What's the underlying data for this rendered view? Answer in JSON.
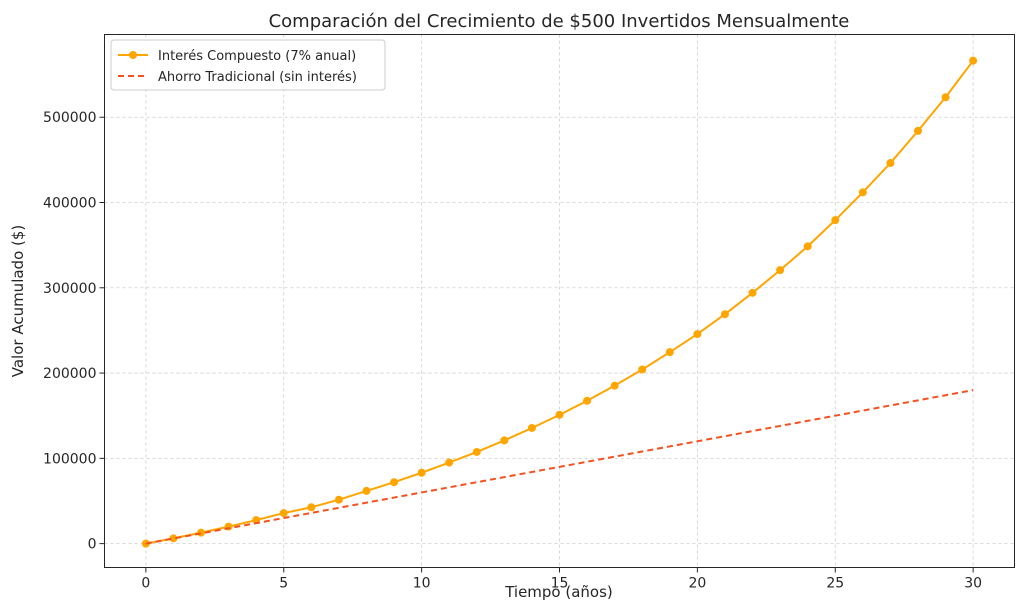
{
  "chart_data": {
    "type": "line",
    "title": "Comparación del Crecimiento de $500 Invertidos Mensualmente",
    "xlabel": "Tiempo (años)",
    "ylabel": "Valor Acumulado ($)",
    "xlim": [
      -1.5,
      31.5
    ],
    "ylim": [
      -28000,
      597000
    ],
    "xticks": [
      0,
      5,
      10,
      15,
      20,
      25,
      30
    ],
    "yticks": [
      0,
      100000,
      200000,
      300000,
      400000,
      500000
    ],
    "grid": true,
    "legend_position": "top-left",
    "x": [
      0,
      1,
      2,
      3,
      4,
      5,
      6,
      7,
      8,
      9,
      10,
      11,
      12,
      13,
      14,
      15,
      16,
      17,
      18,
      19,
      20,
      21,
      22,
      23,
      24,
      25,
      26,
      27,
      28,
      29,
      30
    ],
    "series": [
      {
        "name": "Interés Compuesto (7% anual)",
        "color": "#FFA500",
        "style": "solid",
        "marker": "circle",
        "values": [
          0,
          6200,
          12850,
          19960,
          27570,
          35800,
          42600,
          51500,
          61800,
          72000,
          83100,
          95000,
          107500,
          121000,
          135600,
          151000,
          167500,
          185200,
          204200,
          224500,
          245700,
          269000,
          294100,
          320700,
          348600,
          379300,
          411900,
          446300,
          484000,
          523400,
          566300
        ]
      },
      {
        "name": "Ahorro Tradicional (sin interés)",
        "color": "#F4511E",
        "style": "dashed",
        "marker": "none",
        "values": [
          0,
          6000,
          12000,
          18000,
          24000,
          30000,
          36000,
          42000,
          48000,
          54000,
          60000,
          66000,
          72000,
          78000,
          84000,
          90000,
          96000,
          102000,
          108000,
          114000,
          120000,
          126000,
          132000,
          138000,
          144000,
          150000,
          156000,
          162000,
          168000,
          174000,
          180000
        ]
      }
    ]
  }
}
